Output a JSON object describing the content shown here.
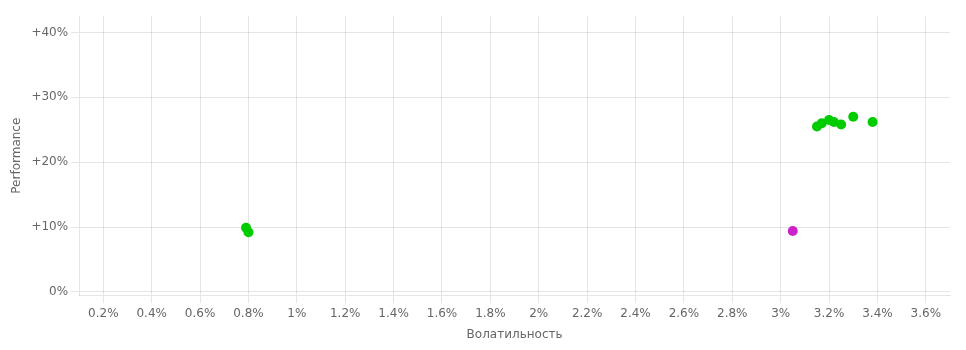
{
  "chart_data": {
    "type": "scatter",
    "xlabel": "Волатильность",
    "ylabel": "Performance",
    "xlim": [
      0.001,
      0.037
    ],
    "ylim": [
      -0.005,
      0.425
    ],
    "xticks": [
      {
        "value": 0.002,
        "label": "0.2%"
      },
      {
        "value": 0.004,
        "label": "0.4%"
      },
      {
        "value": 0.006,
        "label": "0.6%"
      },
      {
        "value": 0.008,
        "label": "0.8%"
      },
      {
        "value": 0.01,
        "label": "1%"
      },
      {
        "value": 0.012,
        "label": "1.2%"
      },
      {
        "value": 0.014,
        "label": "1.4%"
      },
      {
        "value": 0.016,
        "label": "1.6%"
      },
      {
        "value": 0.018,
        "label": "1.8%"
      },
      {
        "value": 0.02,
        "label": "2%"
      },
      {
        "value": 0.022,
        "label": "2.2%"
      },
      {
        "value": 0.024,
        "label": "2.4%"
      },
      {
        "value": 0.026,
        "label": "2.6%"
      },
      {
        "value": 0.028,
        "label": "2.8%"
      },
      {
        "value": 0.03,
        "label": "3%"
      },
      {
        "value": 0.032,
        "label": "3.2%"
      },
      {
        "value": 0.034,
        "label": "3.4%"
      },
      {
        "value": 0.036,
        "label": "3.6%"
      }
    ],
    "yticks": [
      {
        "value": 0.0,
        "label": "0%"
      },
      {
        "value": 0.1,
        "label": "+10%"
      },
      {
        "value": 0.2,
        "label": "+20%"
      },
      {
        "value": 0.3,
        "label": "+30%"
      },
      {
        "value": 0.4,
        "label": "+40%"
      }
    ],
    "grid": true,
    "series": [
      {
        "color": "#00cc00",
        "x": [
          0.0079,
          0.008,
          0.0315,
          0.0317,
          0.032,
          0.0322,
          0.0325,
          0.033,
          0.0338
        ],
        "values": [
          0.099,
          0.092,
          0.255,
          0.26,
          0.265,
          0.262,
          0.258,
          0.27,
          0.262
        ]
      },
      {
        "color": "#cc22cc",
        "x": [
          0.0305
        ],
        "values": [
          0.094
        ]
      }
    ]
  }
}
